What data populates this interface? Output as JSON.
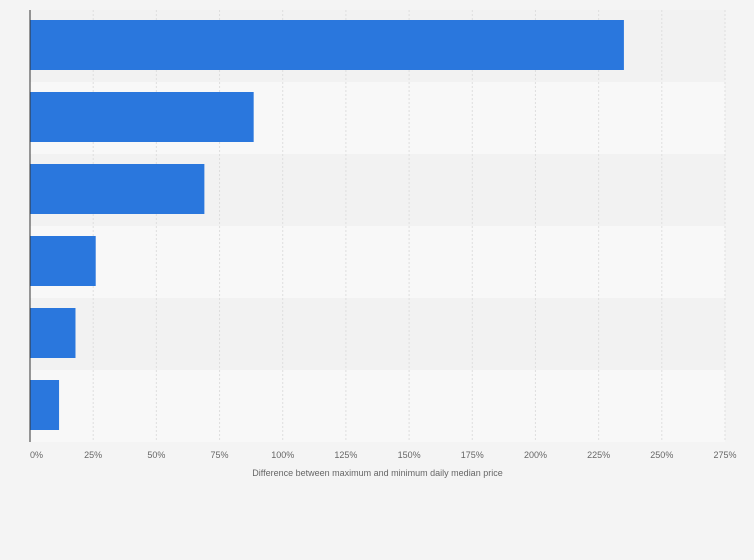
{
  "chart_data": {
    "type": "bar",
    "orientation": "horizontal",
    "title": "",
    "xlabel": "Difference between maximum and minimum daily median price",
    "ylabel": "",
    "xlim": [
      0,
      275
    ],
    "x_ticks": [
      "0%",
      "25%",
      "50%",
      "75%",
      "100%",
      "125%",
      "150%",
      "175%",
      "200%",
      "225%",
      "250%",
      "275%"
    ],
    "tick_values": [
      0,
      25,
      50,
      75,
      100,
      125,
      150,
      175,
      200,
      225,
      250,
      275
    ],
    "categories": [
      "",
      "",
      "",
      "",
      "",
      ""
    ],
    "values": [
      235,
      88.5,
      69,
      26,
      18,
      11.5
    ],
    "grid": true,
    "legend": "none",
    "colors": {
      "bar": "#2a77dd",
      "band_dark": "#f2f2f2",
      "band_light": "#f8f8f8",
      "grid": "#dedede",
      "axis": "#333333",
      "page": "#f4f4f4"
    }
  }
}
